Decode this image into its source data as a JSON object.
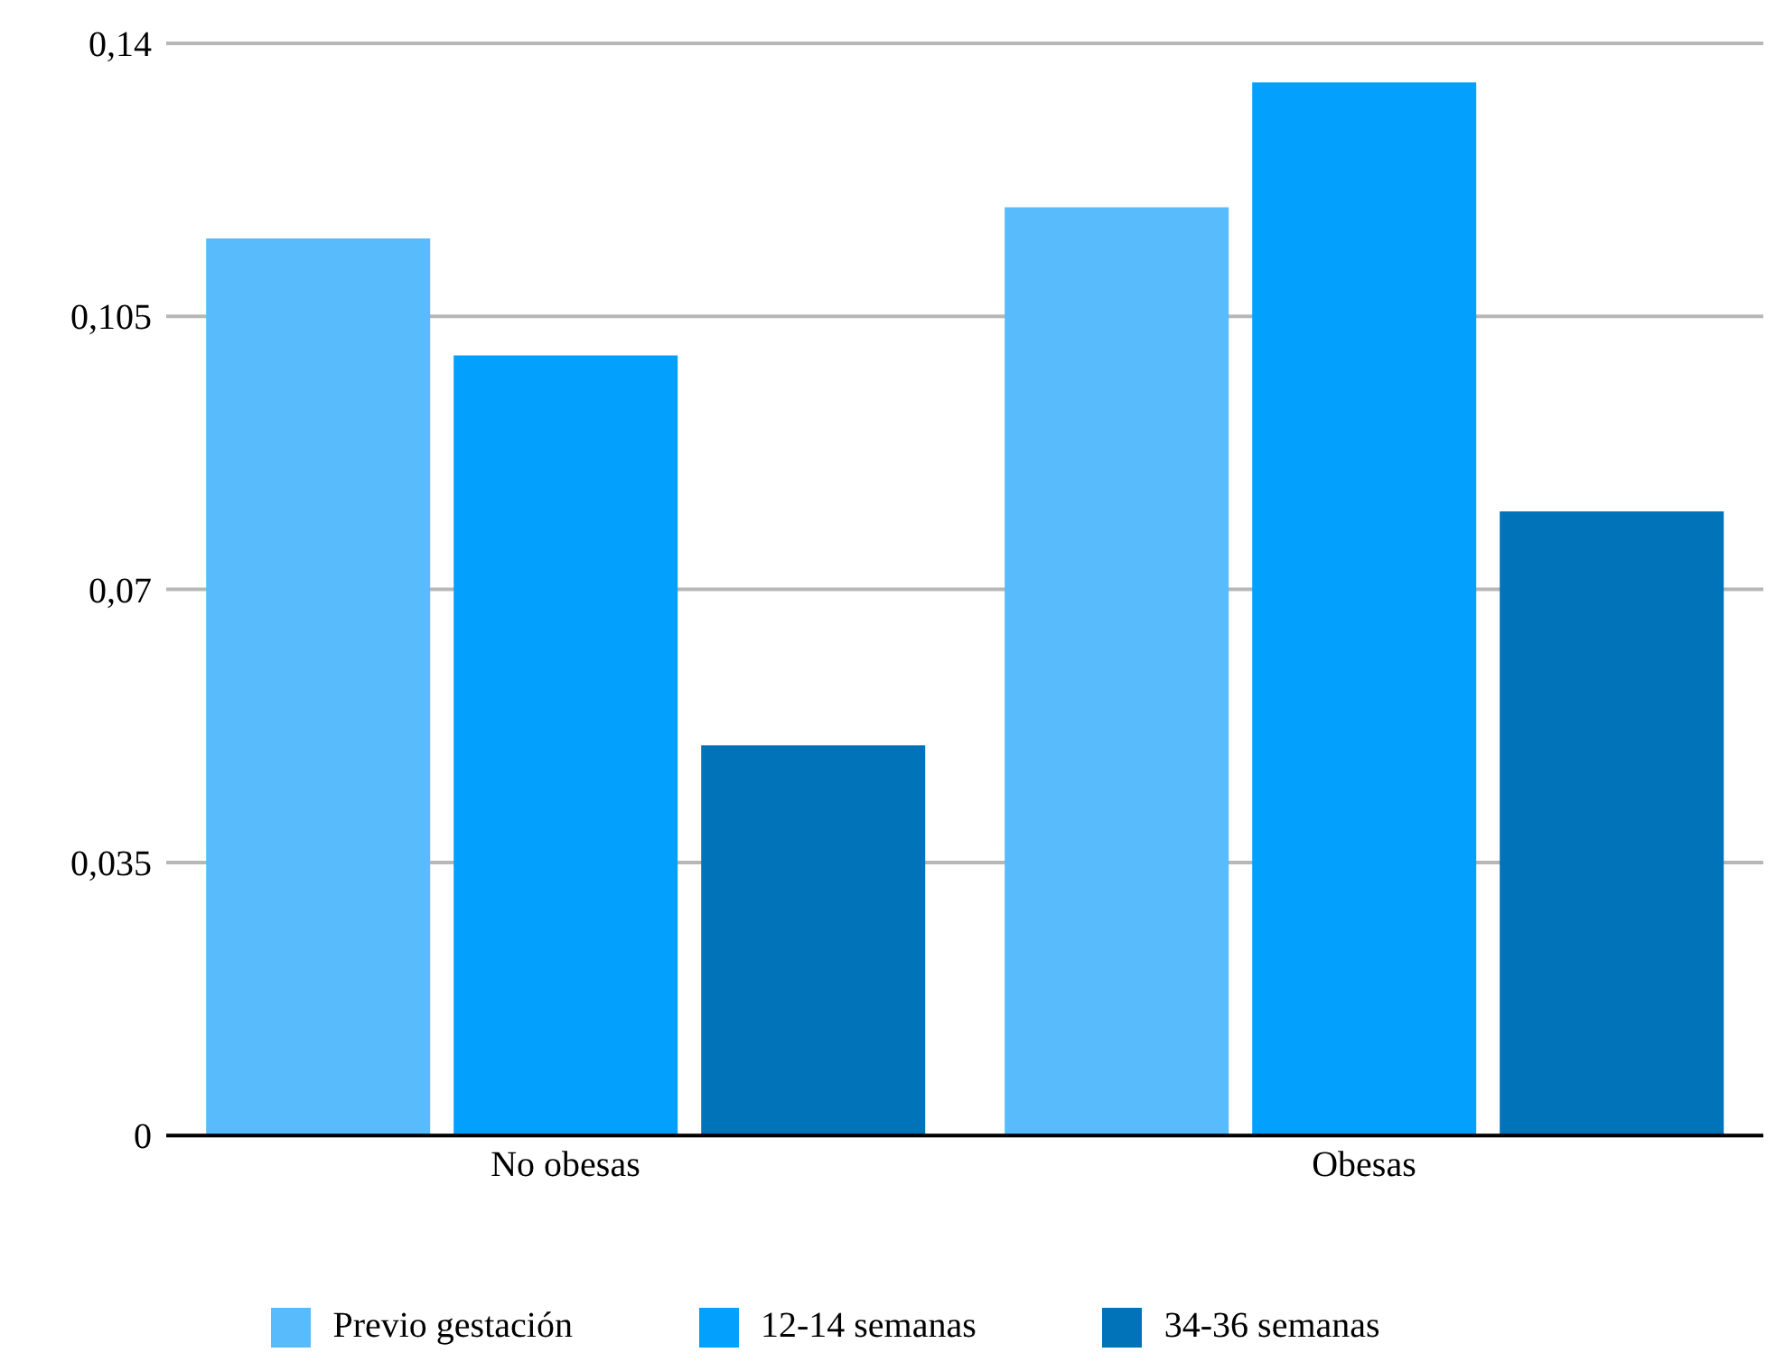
{
  "chart_data": {
    "type": "bar",
    "categories": [
      "No obesas",
      "Obesas"
    ],
    "series": [
      {
        "name": "Previo gestación",
        "color": "#57bbfc",
        "values": [
          0.115,
          0.119
        ]
      },
      {
        "name": "12-14 semanas",
        "color": "#04a0fe",
        "values": [
          0.1,
          0.135
        ]
      },
      {
        "name": "34-36 semanas",
        "color": "#0173b9",
        "values": [
          0.05,
          0.08
        ]
      }
    ],
    "ylim": [
      0,
      0.14
    ],
    "yticks": [
      0,
      {
        "value": 0.035,
        "label": "0,035"
      },
      {
        "value": 0.07,
        "label": "0,07"
      },
      {
        "value": 0.105,
        "label": "0,105"
      },
      {
        "value": 0.14,
        "label": "0,14"
      }
    ],
    "grid": "y",
    "legend": "bottom"
  }
}
